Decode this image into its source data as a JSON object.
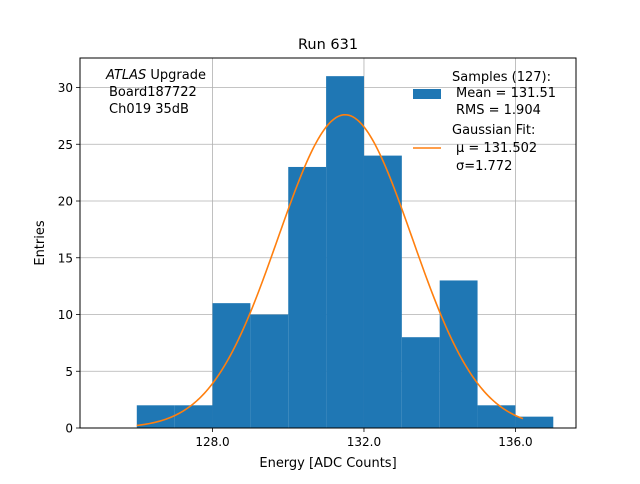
{
  "chart_data": {
    "type": "bar",
    "title": "Run 631",
    "xlabel": "Energy [ADC Counts]",
    "ylabel": "Entries",
    "xlim": [
      124.5,
      137.6
    ],
    "ylim": [
      0,
      32.6
    ],
    "grid": true,
    "legend_position": "top-right",
    "x_ticks": [
      128.0,
      132.0,
      136.0
    ],
    "x_tick_labels": [
      "128.0",
      "132.0",
      "136.0"
    ],
    "y_ticks": [
      0,
      5,
      10,
      15,
      20,
      25,
      30
    ],
    "y_tick_labels": [
      "0",
      "5",
      "10",
      "15",
      "20",
      "25",
      "30"
    ],
    "histogram": {
      "bin_edges": [
        126,
        127,
        128,
        129,
        130,
        131,
        132,
        133,
        134,
        135,
        136,
        137
      ],
      "counts": [
        2,
        2,
        11,
        10,
        23,
        31,
        24,
        8,
        13,
        2,
        1
      ],
      "color": "#1f77b4"
    },
    "gaussian_fit": {
      "mu": 131.502,
      "sigma": 1.772,
      "amplitude": 27.6,
      "x_range": [
        126.0,
        136.2
      ],
      "color": "#ff7f0e"
    },
    "annotation": {
      "line1_italic": "ATLAS",
      "line1_rest": " Upgrade",
      "line2": "Board187722",
      "line3": "Ch019 35dB"
    },
    "legend": {
      "samples_title": "Samples (127):",
      "samples_mean": "Mean = 131.51",
      "samples_rms": "RMS = 1.904",
      "fit_title": "Gaussian Fit:",
      "fit_mu": "μ = 131.502",
      "fit_sigma": "σ=1.772"
    }
  }
}
